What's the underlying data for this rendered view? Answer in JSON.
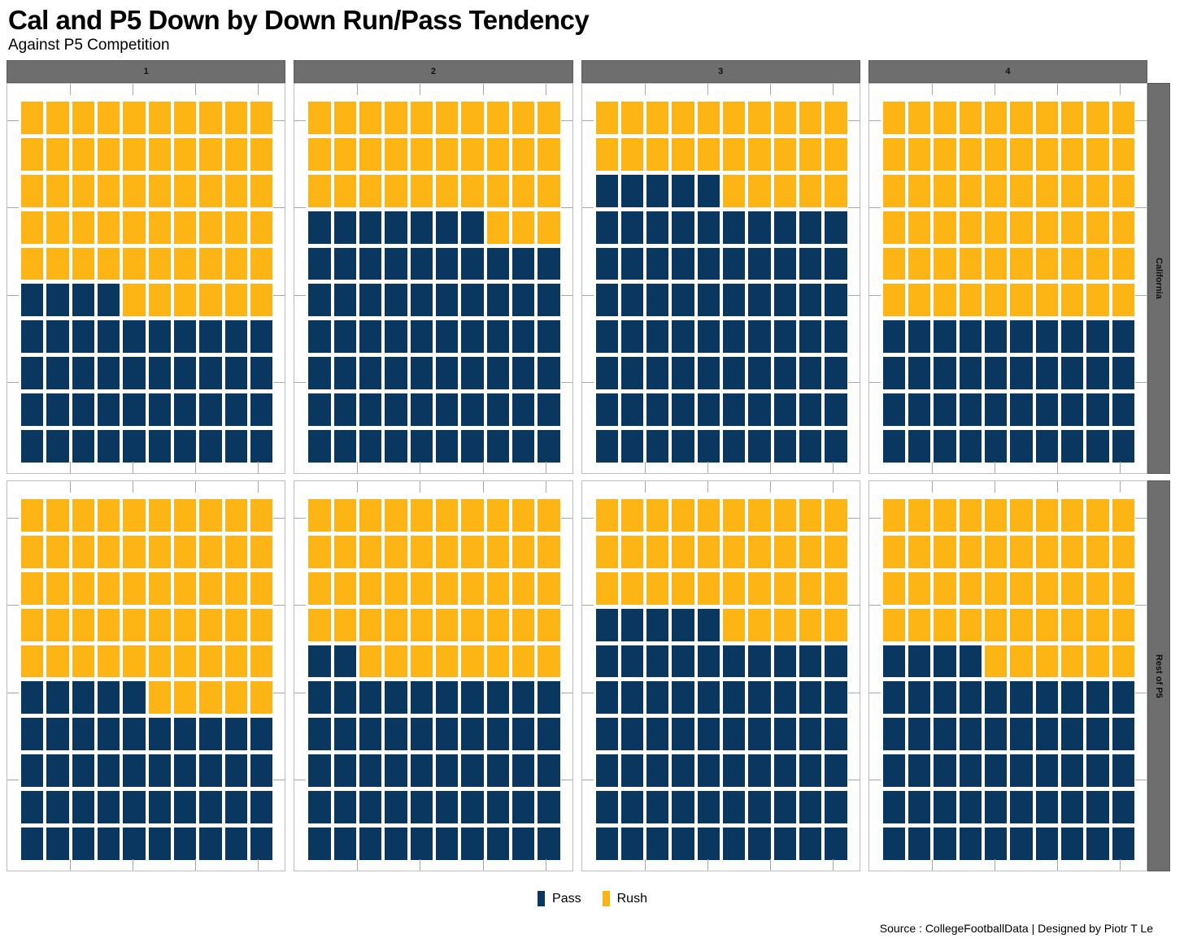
{
  "header": {
    "title": "Cal and P5 Down by Down Run/Pass Tendency",
    "subtitle": "Against P5 Competition"
  },
  "facets": {
    "cols": [
      "1",
      "2",
      "3",
      "4"
    ],
    "rows": [
      "California",
      "Rest of P5"
    ]
  },
  "legend": {
    "items": [
      {
        "label": "Pass",
        "color": "#0a3760"
      },
      {
        "label": "Rush",
        "color": "#FCB515"
      }
    ]
  },
  "footer": {
    "source": "Source : CollegeFootballData | Designed by Piotr T Le"
  },
  "chart_data": {
    "type": "waffle",
    "title": "Cal and P5 Down by Down Run/Pass Tendency",
    "subtitle": "Against P5 Competition",
    "unit": "1 square = 1% of plays, 10x10 grid per facet, filled bottom-left to top-right",
    "facet_columns_meaning": "Down",
    "facet_columns": [
      "1",
      "2",
      "3",
      "4"
    ],
    "facet_rows": [
      "California",
      "Rest of P5"
    ],
    "legend_position": "bottom",
    "grid": "off",
    "colors": {
      "pass": "#0a3760",
      "rush": "#FCB515"
    },
    "cells": [
      {
        "facet_row": "California",
        "down": "1",
        "pass_pct": 44,
        "rush_pct": 56
      },
      {
        "facet_row": "California",
        "down": "2",
        "pass_pct": 67,
        "rush_pct": 33
      },
      {
        "facet_row": "California",
        "down": "3",
        "pass_pct": 75,
        "rush_pct": 25
      },
      {
        "facet_row": "California",
        "down": "4",
        "pass_pct": 40,
        "rush_pct": 60
      },
      {
        "facet_row": "Rest of P5",
        "down": "1",
        "pass_pct": 45,
        "rush_pct": 55
      },
      {
        "facet_row": "Rest of P5",
        "down": "2",
        "pass_pct": 52,
        "rush_pct": 48
      },
      {
        "facet_row": "Rest of P5",
        "down": "3",
        "pass_pct": 65,
        "rush_pct": 35
      },
      {
        "facet_row": "Rest of P5",
        "down": "4",
        "pass_pct": 54,
        "rush_pct": 46
      }
    ]
  }
}
